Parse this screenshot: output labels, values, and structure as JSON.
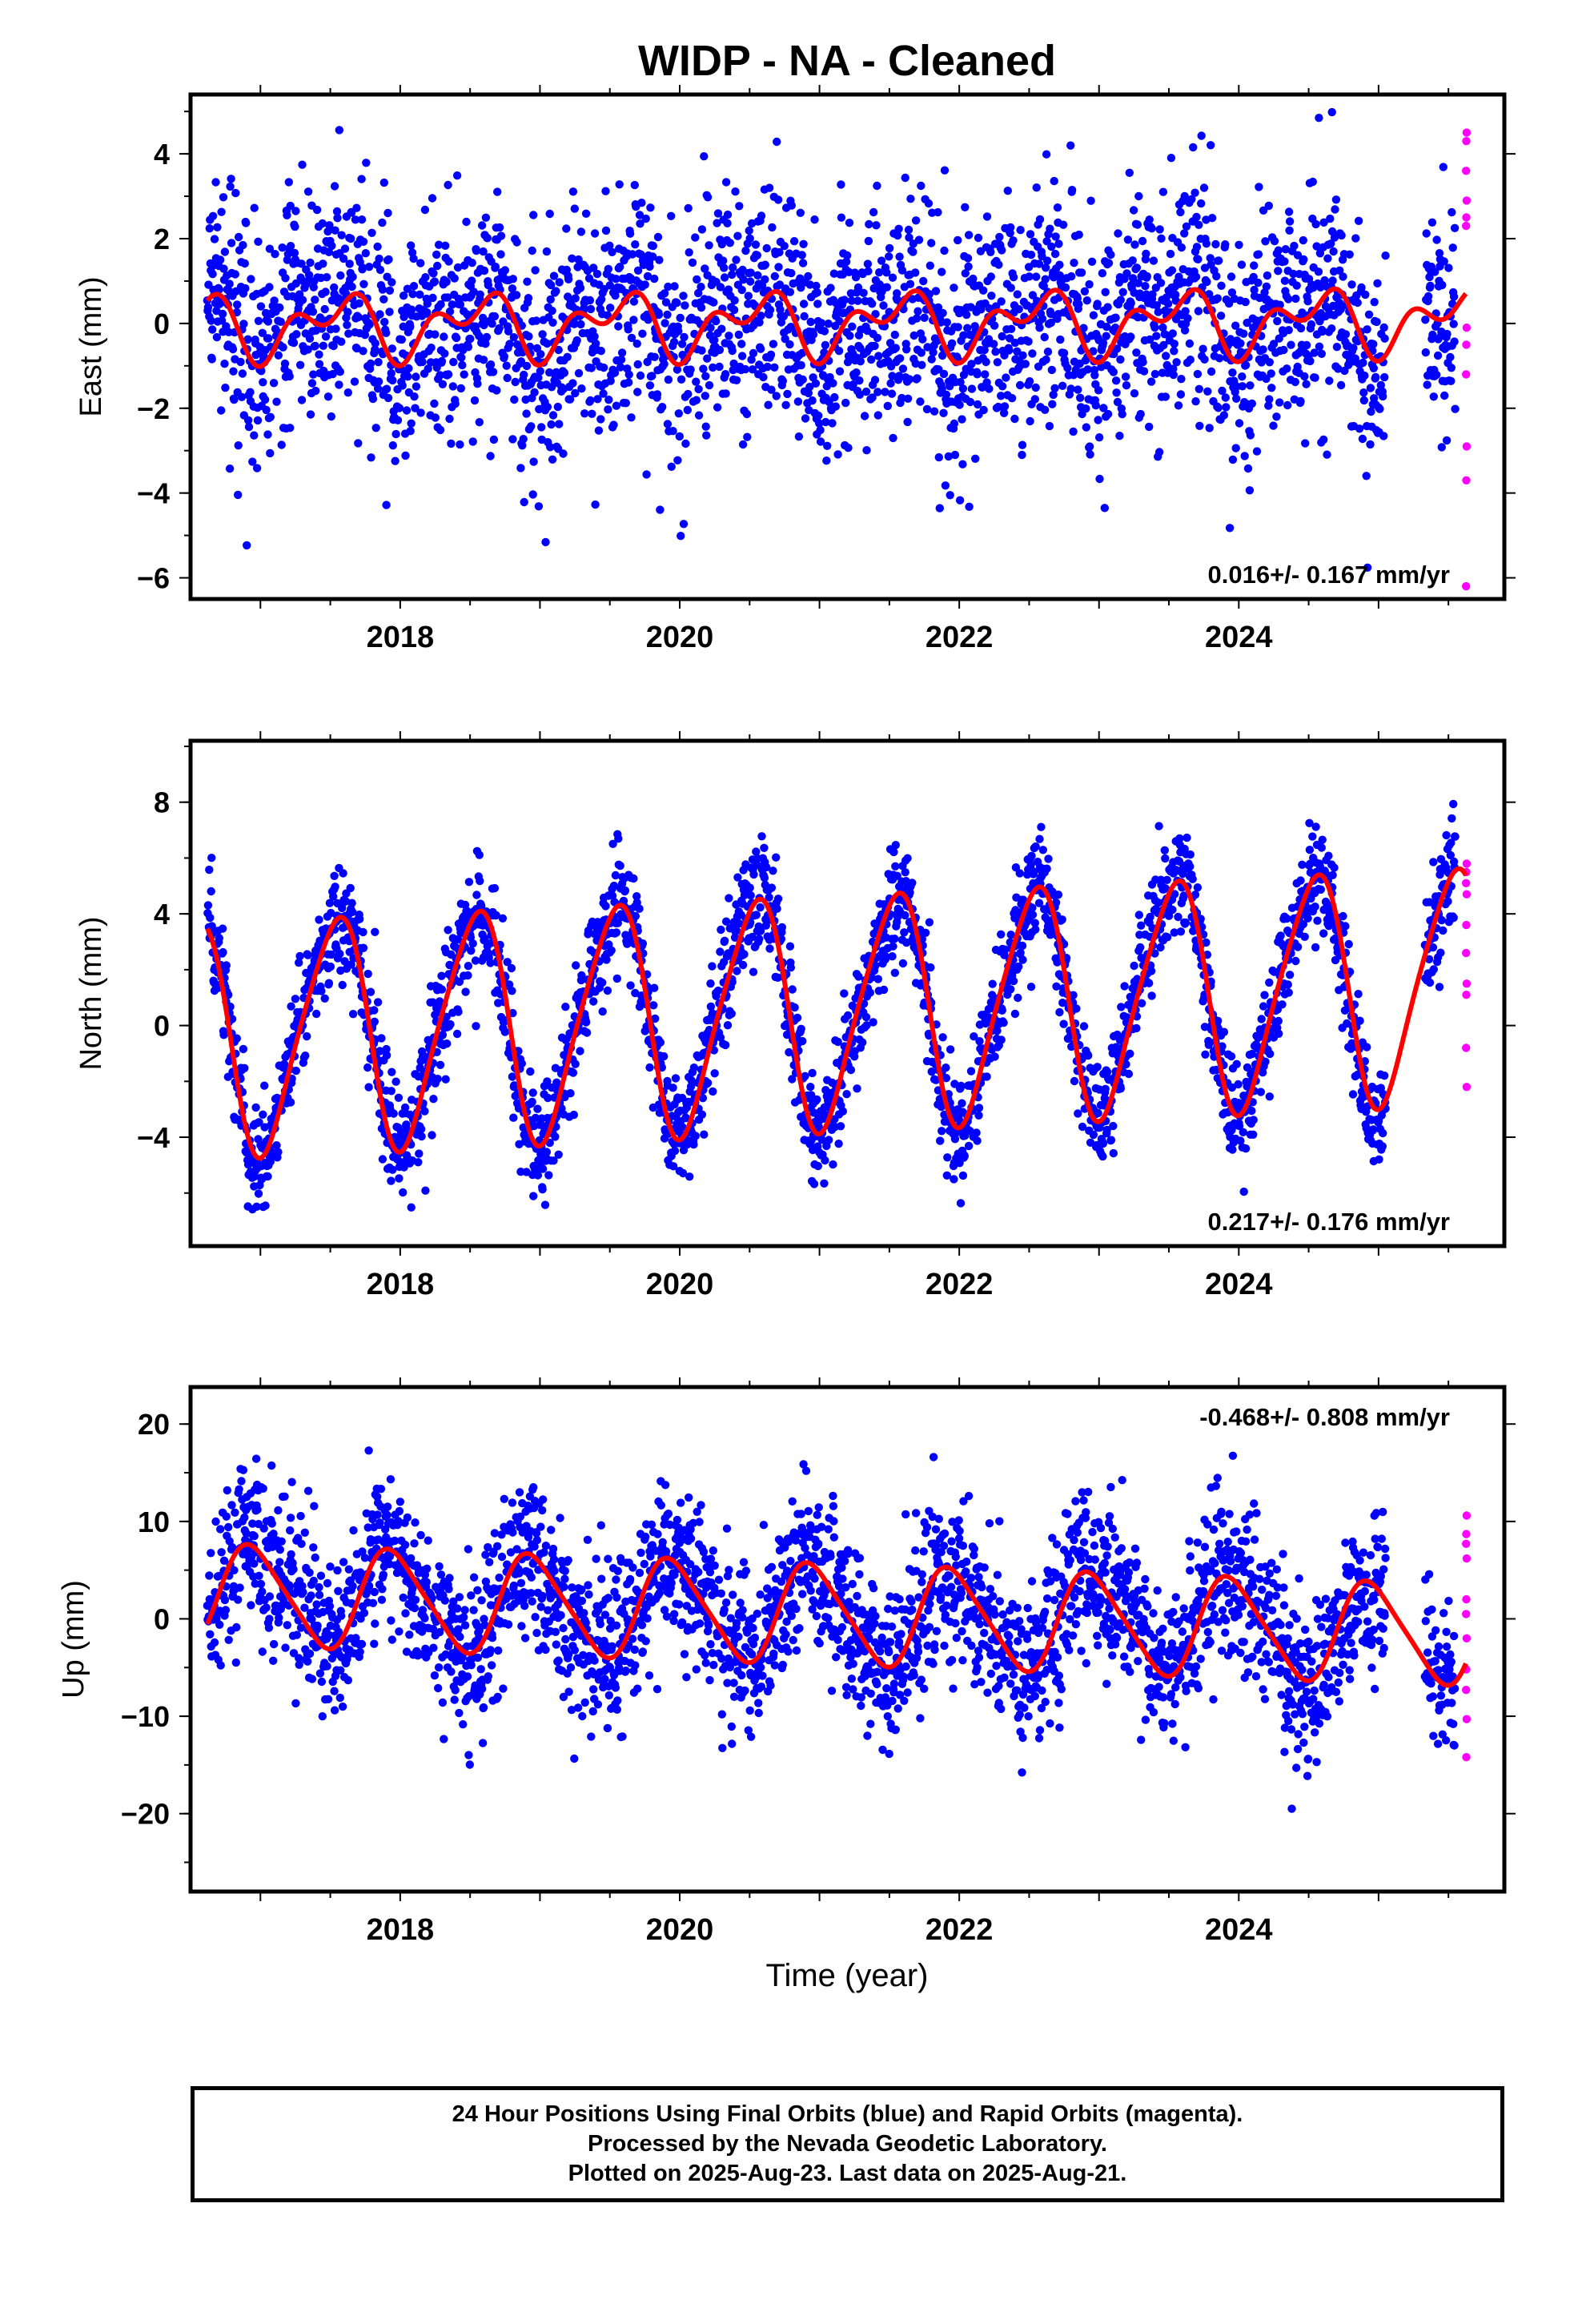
{
  "title": "WIDP  - NA - Cleaned",
  "colors": {
    "final_orbits": "#0000ff",
    "rapid_orbits": "#ff00ff",
    "model_fit": "#ff0000",
    "frame": "#000000"
  },
  "xaxis": {
    "label": "Time (year)",
    "range": [
      2016.5,
      2025.9
    ],
    "tick_labels": [
      "2018",
      "2020",
      "2022",
      "2024"
    ],
    "tick_values": [
      2018,
      2020,
      2022,
      2024
    ]
  },
  "footer": {
    "line1": "24 Hour Positions Using Final Orbits (blue) and Rapid Orbits (magenta).",
    "line2": "Processed by the Nevada Geodetic Laboratory.",
    "line3": "Plotted on 2025-Aug-23. Last data on 2025-Aug-21."
  },
  "chart_data": [
    {
      "type": "scatter",
      "ylabel": "East (mm)",
      "ylim": [
        -6.5,
        5.4
      ],
      "yticks": [
        -6,
        -4,
        -2,
        0,
        2,
        4
      ],
      "ytick_labels": [
        "−6",
        "−4",
        "−2",
        "0",
        "2",
        "4"
      ],
      "rate_label": "0.016+/- 0.167 mm/yr",
      "rate_position": "bottom-right",
      "model": {
        "offset": 0.0,
        "trend": 0.016,
        "annual_amp": 0.55,
        "annual_phase": 0.3,
        "semiannual_amp": 0.45,
        "semiannual_phase": 0.1
      },
      "scatter_sd": 1.35,
      "data_start": 2016.62,
      "final_end": 2025.55,
      "rapid_end": 2025.63,
      "rapid_values": [
        4.5,
        4.3,
        3.6,
        2.9,
        2.5,
        2.3,
        -0.1,
        -0.5,
        -1.2,
        -2.9,
        -3.7,
        -6.2
      ],
      "grid": false
    },
    {
      "type": "scatter",
      "ylabel": "North (mm)",
      "ylim": [
        -7.9,
        10.2
      ],
      "yticks": [
        -4,
        0,
        4,
        8
      ],
      "ytick_labels": [
        "−4",
        "0",
        "4",
        "8"
      ],
      "rate_label": "0.217+/- 0.176 mm/yr",
      "rate_position": "bottom-right",
      "model": {
        "offset": 0.5,
        "trend": 0.217,
        "annual_amp": 4.1,
        "annual_phase": 0.28,
        "semiannual_amp": 0.6,
        "semiannual_phase": 0.05
      },
      "scatter_sd": 1.0,
      "data_start": 2016.62,
      "final_end": 2025.55,
      "rapid_end": 2025.63,
      "rapid_values": [
        5.8,
        5.5,
        5.1,
        4.7,
        3.6,
        2.6,
        1.5,
        1.1,
        -0.8,
        -2.2
      ],
      "grid": false
    },
    {
      "type": "scatter",
      "ylabel": "Up (mm)",
      "ylim": [
        -28,
        23.8
      ],
      "yticks": [
        -20,
        -10,
        0,
        10,
        20
      ],
      "ytick_labels": [
        "−20",
        "−10",
        "0",
        "10",
        "20"
      ],
      "rate_label": "-0.468+/- 0.808 mm/yr",
      "rate_position": "top-right",
      "model": {
        "offset": 0.5,
        "trend": -0.468,
        "annual_amp": 5.0,
        "annual_phase": 0.7,
        "semiannual_amp": 0.8,
        "semiannual_phase": 0.2
      },
      "scatter_sd": 4.3,
      "data_start": 2016.62,
      "final_end": 2025.55,
      "rapid_end": 2025.63,
      "rapid_values": [
        10.6,
        8.7,
        7.7,
        6.2,
        2.0,
        0.5,
        -2.0,
        -5.2,
        -7.3,
        -10.3,
        -14.2
      ],
      "grid": false
    }
  ]
}
